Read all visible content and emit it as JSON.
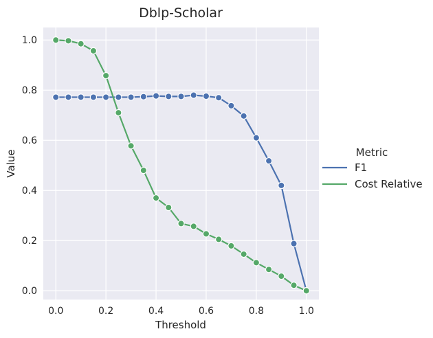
{
  "chart_data": {
    "type": "line",
    "title": "Dblp-Scholar",
    "xlabel": "Threshold",
    "ylabel": "Value",
    "xlim": [
      -0.05,
      1.05
    ],
    "ylim": [
      -0.035,
      1.05
    ],
    "xticks": [
      0.0,
      0.2,
      0.4,
      0.6,
      0.8,
      1.0
    ],
    "xtick_labels": [
      "0.0",
      "0.2",
      "0.4",
      "0.6",
      "0.8",
      "1.0"
    ],
    "yticks": [
      0.0,
      0.2,
      0.4,
      0.6,
      0.8,
      1.0
    ],
    "ytick_labels": [
      "0.0",
      "0.2",
      "0.4",
      "0.6",
      "0.8",
      "1.0"
    ],
    "grid": true,
    "legend": {
      "title": "Metric",
      "placement": "right-outside"
    },
    "x": [
      0.0,
      0.05,
      0.1,
      0.15,
      0.2,
      0.25,
      0.3,
      0.35,
      0.4,
      0.45,
      0.5,
      0.55,
      0.6,
      0.65,
      0.7,
      0.75,
      0.8,
      0.85,
      0.9,
      0.95,
      1.0
    ],
    "series": [
      {
        "name": "F1",
        "color": "#4c72b0",
        "values": [
          0.772,
          0.772,
          0.772,
          0.772,
          0.772,
          0.772,
          0.772,
          0.774,
          0.777,
          0.775,
          0.775,
          0.78,
          0.776,
          0.77,
          0.738,
          0.697,
          0.61,
          0.518,
          0.42,
          0.188,
          0.0
        ]
      },
      {
        "name": "Cost Relative",
        "color": "#55a868",
        "values": [
          1.0,
          0.997,
          0.985,
          0.957,
          0.858,
          0.71,
          0.578,
          0.48,
          0.37,
          0.332,
          0.268,
          0.257,
          0.227,
          0.205,
          0.179,
          0.146,
          0.112,
          0.085,
          0.058,
          0.022,
          0.0
        ]
      }
    ]
  }
}
